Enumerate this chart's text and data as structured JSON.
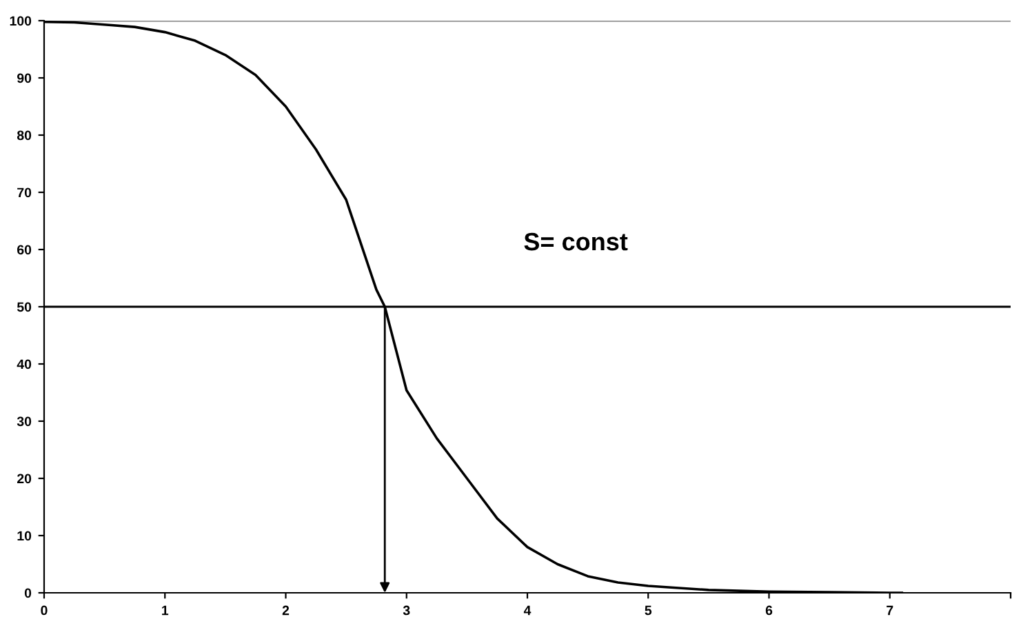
{
  "chart_data": {
    "type": "line",
    "xlim": [
      0,
      8
    ],
    "xticks": [
      0,
      1,
      2,
      3,
      4,
      5,
      6,
      7,
      {
        "value": 8,
        "label": null
      }
    ],
    "ylim": [
      0,
      100
    ],
    "yticks": [
      0,
      10,
      20,
      30,
      40,
      50,
      60,
      70,
      80,
      90,
      100
    ],
    "grid": false,
    "marker": "none",
    "line_style": "solid",
    "series": [
      {
        "color": "#000000",
        "x": [
          0,
          0.25,
          0.5,
          0.75,
          1,
          1.25,
          1.5,
          1.75,
          2,
          2.25,
          2.5,
          2.75,
          2.82,
          3,
          3.25,
          3.5,
          3.75,
          4,
          4.25,
          4.5,
          4.75,
          5,
          5.5,
          6,
          6.5,
          7,
          7.1
        ],
        "values": [
          99.8,
          99.7,
          99.3,
          98.9,
          98,
          96.5,
          94,
          90.5,
          85,
          77.5,
          68.7,
          53,
          50,
          35.4,
          27,
          20,
          13,
          8,
          5,
          2.9,
          1.8,
          1.2,
          0.5,
          0.2,
          0.1,
          0,
          0
        ]
      }
    ],
    "ref_lines": [
      {
        "axis": "y",
        "value": 50,
        "color": "#000000"
      },
      {
        "axis": "y",
        "value": 100,
        "color": "#808080"
      }
    ],
    "annotations": [
      "S= const"
    ]
  }
}
